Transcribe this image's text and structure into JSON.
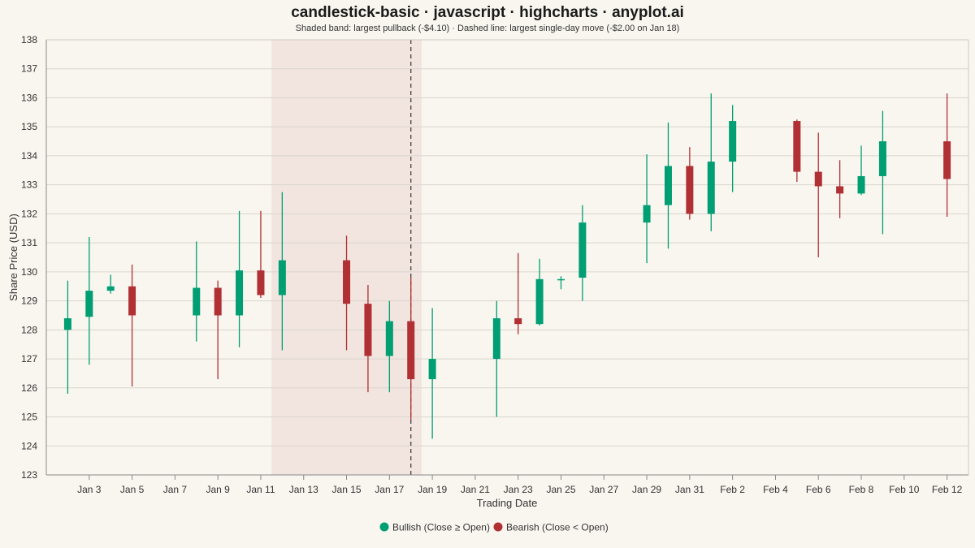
{
  "chart_data": {
    "type": "candlestick",
    "title": "candlestick-basic · javascript · highcharts · anyplot.ai",
    "subtitle": "Shaded band: largest pullback (-$4.10) · Dashed line: largest single-day move (-$2.00 on Jan 18)",
    "xlabel": "Trading Date",
    "ylabel": "Share Price (USD)",
    "ylim": [
      123,
      138
    ],
    "yticks": [
      123,
      124,
      125,
      126,
      127,
      128,
      129,
      130,
      131,
      132,
      133,
      134,
      135,
      136,
      137,
      138
    ],
    "xlim": [
      "Jan 1",
      "Feb 13"
    ],
    "xticks": [
      "Jan 3",
      "Jan 5",
      "Jan 7",
      "Jan 9",
      "Jan 11",
      "Jan 13",
      "Jan 15",
      "Jan 17",
      "Jan 19",
      "Jan 21",
      "Jan 23",
      "Jan 25",
      "Jan 27",
      "Jan 29",
      "Jan 31",
      "Feb 2",
      "Feb 4",
      "Feb 6",
      "Feb 8",
      "Feb 10",
      "Feb 12"
    ],
    "grid": true,
    "legend_position": "bottom-center",
    "colors": {
      "bullish": "#009e73",
      "bearish": "#b03034",
      "band": "#f2e5df",
      "background": "#f9f6f0"
    },
    "legend": [
      {
        "key": "bullish",
        "label": "Bullish (Close ≥ Open)"
      },
      {
        "key": "bearish",
        "label": "Bearish (Close < Open)"
      }
    ],
    "pullback_band": {
      "from": "Jan 11.5",
      "to": "Jan 18.5",
      "label": "largest pullback (-$4.10)"
    },
    "largest_move": {
      "date": "Jan 18",
      "change": -2.0
    },
    "candles": [
      {
        "date": "Jan 2",
        "open": 128.0,
        "high": 129.7,
        "low": 125.8,
        "close": 128.4
      },
      {
        "date": "Jan 3",
        "open": 128.45,
        "high": 131.2,
        "low": 126.8,
        "close": 129.35
      },
      {
        "date": "Jan 4",
        "open": 129.35,
        "high": 129.9,
        "low": 129.25,
        "close": 129.5
      },
      {
        "date": "Jan 5",
        "open": 129.5,
        "high": 130.25,
        "low": 126.05,
        "close": 128.5
      },
      {
        "date": "Jan 8",
        "open": 128.5,
        "high": 131.05,
        "low": 127.6,
        "close": 129.45
      },
      {
        "date": "Jan 9",
        "open": 129.45,
        "high": 129.7,
        "low": 126.3,
        "close": 128.5
      },
      {
        "date": "Jan 10",
        "open": 128.5,
        "high": 132.1,
        "low": 127.4,
        "close": 130.05
      },
      {
        "date": "Jan 11",
        "open": 130.05,
        "high": 132.1,
        "low": 129.1,
        "close": 129.2
      },
      {
        "date": "Jan 12",
        "open": 129.2,
        "high": 132.75,
        "low": 127.3,
        "close": 130.4
      },
      {
        "date": "Jan 15",
        "open": 130.4,
        "high": 131.25,
        "low": 127.3,
        "close": 128.9
      },
      {
        "date": "Jan 16",
        "open": 128.9,
        "high": 129.55,
        "low": 125.85,
        "close": 127.1
      },
      {
        "date": "Jan 17",
        "open": 127.1,
        "high": 129.0,
        "low": 125.85,
        "close": 128.3
      },
      {
        "date": "Jan 18",
        "open": 128.3,
        "high": 129.8,
        "low": 124.9,
        "close": 126.3
      },
      {
        "date": "Jan 19",
        "open": 126.3,
        "high": 128.75,
        "low": 124.25,
        "close": 127.0
      },
      {
        "date": "Jan 22",
        "open": 127.0,
        "high": 129.0,
        "low": 125.0,
        "close": 128.4
      },
      {
        "date": "Jan 23",
        "open": 128.4,
        "high": 130.65,
        "low": 127.85,
        "close": 128.2
      },
      {
        "date": "Jan 24",
        "open": 128.2,
        "high": 130.45,
        "low": 128.15,
        "close": 129.75
      },
      {
        "date": "Jan 25",
        "open": 129.75,
        "high": 129.85,
        "low": 129.4,
        "close": 129.75
      },
      {
        "date": "Jan 26",
        "open": 129.8,
        "high": 132.3,
        "low": 129.0,
        "close": 131.7
      },
      {
        "date": "Jan 29",
        "open": 131.7,
        "high": 134.05,
        "low": 130.3,
        "close": 132.3
      },
      {
        "date": "Jan 30",
        "open": 132.3,
        "high": 135.15,
        "low": 130.8,
        "close": 133.65
      },
      {
        "date": "Jan 31",
        "open": 133.65,
        "high": 134.3,
        "low": 131.8,
        "close": 132.0
      },
      {
        "date": "Feb 1",
        "open": 132.0,
        "high": 136.15,
        "low": 131.4,
        "close": 133.8
      },
      {
        "date": "Feb 2",
        "open": 133.8,
        "high": 135.75,
        "low": 132.75,
        "close": 135.2
      },
      {
        "date": "Feb 5",
        "open": 135.2,
        "high": 135.25,
        "low": 133.1,
        "close": 133.45
      },
      {
        "date": "Feb 6",
        "open": 133.45,
        "high": 134.8,
        "low": 130.5,
        "close": 132.95
      },
      {
        "date": "Feb 7",
        "open": 132.95,
        "high": 133.85,
        "low": 131.85,
        "close": 132.7
      },
      {
        "date": "Feb 8",
        "open": 132.7,
        "high": 134.35,
        "low": 132.65,
        "close": 133.3
      },
      {
        "date": "Feb 9",
        "open": 133.3,
        "high": 135.55,
        "low": 131.3,
        "close": 134.5
      },
      {
        "date": "Feb 12",
        "open": 134.5,
        "high": 136.15,
        "low": 131.9,
        "close": 133.2
      }
    ]
  }
}
